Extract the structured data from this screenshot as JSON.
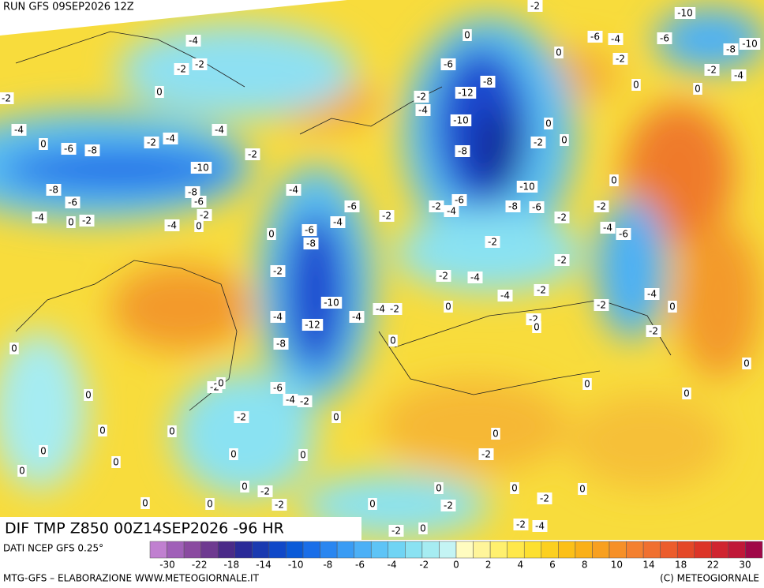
{
  "header": {
    "run": "RUN GFS 09SEP2026 12Z"
  },
  "map": {
    "title": "DIF TMP Z850 00Z14SEP2026 -96 HR",
    "contour_labels": [
      "-2",
      "-10",
      "0",
      "-6",
      "-4",
      "-6",
      "-10",
      "-8",
      "-4",
      "0",
      "-2",
      "-2",
      "-4",
      "-2",
      "-2",
      "-6",
      "-8",
      "0",
      "0",
      "0",
      "-2",
      "-12",
      "-2",
      "-4",
      "-10",
      "0",
      "-4",
      "-4",
      "-2",
      "-4",
      "-2",
      "0",
      "0",
      "-6",
      "-8",
      "-2",
      "-8",
      "-10",
      "0",
      "-10",
      "-8",
      "-4",
      "-8",
      "-6",
      "-6",
      "-6",
      "-2",
      "-4",
      "-6",
      "-8",
      "-6",
      "-2",
      "-4",
      "0",
      "-2",
      "-2",
      "-2",
      "-2",
      "-4",
      "-4",
      "0",
      "-4",
      "-6",
      "0",
      "-6",
      "-8",
      "-2",
      "-2",
      "-2",
      "-2",
      "-4",
      "-2",
      "-4",
      "-4",
      "-10",
      "-4",
      "-2",
      "0",
      "-2",
      "0",
      "-4",
      "-4",
      "-2",
      "0",
      "-12",
      "-2",
      "0",
      "-8",
      "0",
      "-2",
      "0",
      "-6",
      "0",
      "0",
      "-4",
      "-2",
      "0",
      "0",
      "-2",
      "0",
      "0",
      "0",
      "0",
      "0",
      "0",
      "0",
      "-2",
      "0",
      "0",
      "-2",
      "0",
      "0",
      "0",
      "0",
      "-2",
      "0",
      "0",
      "-2",
      "0",
      "-2",
      "-2",
      "-4",
      "-2",
      "0"
    ]
  },
  "legend": {
    "source": "DATI NCEP GFS 0.25°",
    "labels": [
      -30,
      -22,
      -18,
      -14,
      -10,
      -8,
      -6,
      -4,
      -2,
      0,
      2,
      4,
      6,
      8,
      10,
      14,
      18,
      22,
      30
    ],
    "colors": [
      "#c080d0",
      "#a060b8",
      "#8a4aa0",
      "#6e3a90",
      "#4a2a88",
      "#2a2a98",
      "#1a3ab0",
      "#1048c8",
      "#0a5ad8",
      "#1a6ee8",
      "#2a86f0",
      "#3a9cf4",
      "#4cb0f6",
      "#5ec4f6",
      "#70d4f4",
      "#8ae2f2",
      "#a6ecf2",
      "#c4f4f4",
      "#fffcc0",
      "#fff59a",
      "#fff06e",
      "#ffe84a",
      "#fde030",
      "#fcd020",
      "#fcc018",
      "#fab018",
      "#f8a020",
      "#f69028",
      "#f48030",
      "#f07030",
      "#ec5c2c",
      "#e44828",
      "#dc3428",
      "#d02430",
      "#c01838",
      "#a00848"
    ]
  },
  "footer": {
    "left": "MTG-GFS – ELABORAZIONE WWW.METEOGIORNALE.IT",
    "right": "(C) METEOGIORNALE"
  }
}
